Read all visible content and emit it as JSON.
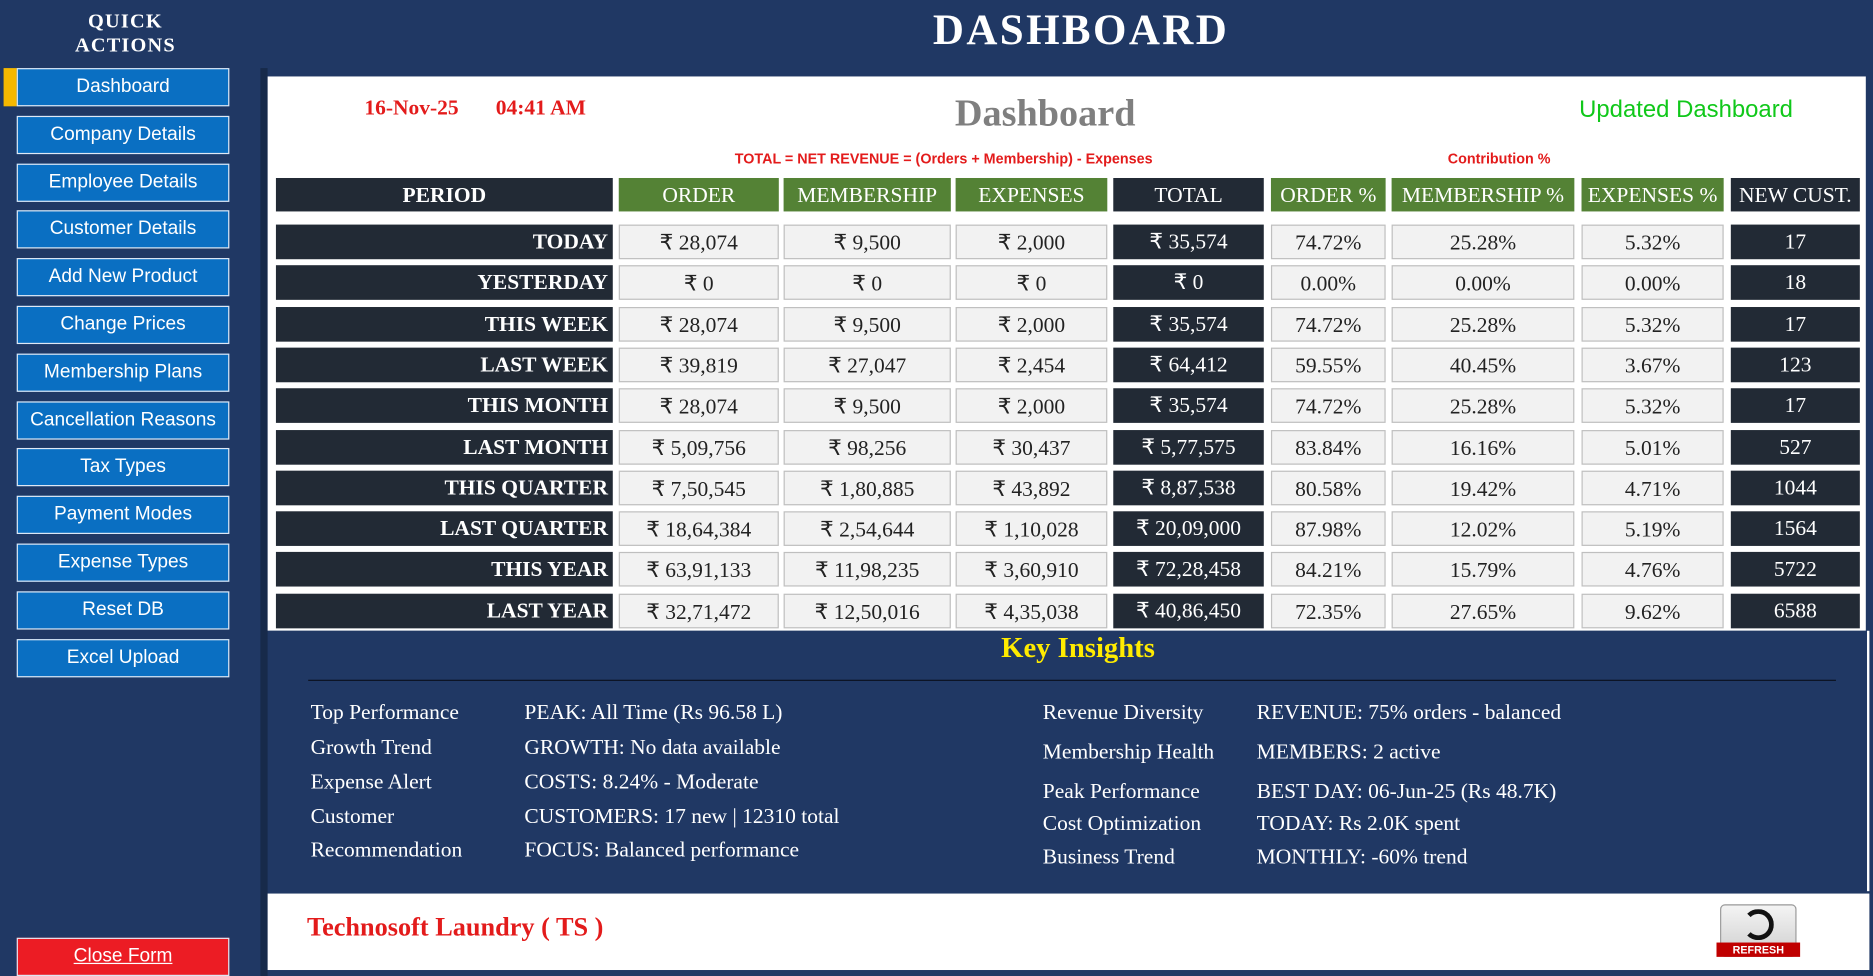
{
  "sidebar": {
    "title": "QUICK ACTIONS",
    "buttons": [
      "Dashboard",
      "Company Details",
      "Employee Details",
      "Customer Details",
      "Add New Product",
      "Change Prices",
      "Membership Plans",
      "Cancellation Reasons",
      "Tax Types",
      "Payment Modes",
      "Expense Types",
      "Reset DB",
      "Excel Upload"
    ],
    "close": "Close Form"
  },
  "header": {
    "title": "DASHBOARD"
  },
  "panel": {
    "date": "16-Nov-25",
    "time": "04:41 AM",
    "title": "Dashboard",
    "status": "Updated Dashboard",
    "formula": "TOTAL = NET REVENUE = (Orders + Membership) - Expenses",
    "contribution": "Contribution %"
  },
  "table": {
    "columns": [
      "PERIOD",
      "ORDER",
      "MEMBERSHIP",
      "EXPENSES",
      "TOTAL",
      "ORDER %",
      "MEMBERSHIP %",
      "EXPENSES %",
      "NEW CUST."
    ],
    "rows": [
      [
        "TODAY",
        "₹ 28,074",
        "₹ 9,500",
        "₹ 2,000",
        "₹ 35,574",
        "74.72%",
        "25.28%",
        "5.32%",
        "17"
      ],
      [
        "YESTERDAY",
        "₹ 0",
        "₹ 0",
        "₹ 0",
        "₹ 0",
        "0.00%",
        "0.00%",
        "0.00%",
        "18"
      ],
      [
        "THIS WEEK",
        "₹ 28,074",
        "₹ 9,500",
        "₹ 2,000",
        "₹ 35,574",
        "74.72%",
        "25.28%",
        "5.32%",
        "17"
      ],
      [
        "LAST WEEK",
        "₹ 39,819",
        "₹ 27,047",
        "₹ 2,454",
        "₹ 64,412",
        "59.55%",
        "40.45%",
        "3.67%",
        "123"
      ],
      [
        "THIS MONTH",
        "₹ 28,074",
        "₹ 9,500",
        "₹ 2,000",
        "₹ 35,574",
        "74.72%",
        "25.28%",
        "5.32%",
        "17"
      ],
      [
        "LAST MONTH",
        "₹ 5,09,756",
        "₹ 98,256",
        "₹ 30,437",
        "₹ 5,77,575",
        "83.84%",
        "16.16%",
        "5.01%",
        "527"
      ],
      [
        "THIS QUARTER",
        "₹ 7,50,545",
        "₹ 1,80,885",
        "₹ 43,892",
        "₹ 8,87,538",
        "80.58%",
        "19.42%",
        "4.71%",
        "1044"
      ],
      [
        "LAST QUARTER",
        "₹ 18,64,384",
        "₹ 2,54,644",
        "₹ 1,10,028",
        "₹ 20,09,000",
        "87.98%",
        "12.02%",
        "5.19%",
        "1564"
      ],
      [
        "THIS YEAR",
        "₹ 63,91,133",
        "₹ 11,98,235",
        "₹ 3,60,910",
        "₹ 72,28,458",
        "84.21%",
        "15.79%",
        "4.76%",
        "5722"
      ],
      [
        "LAST YEAR",
        "₹ 32,71,472",
        "₹ 12,50,016",
        "₹ 4,35,038",
        "₹ 40,86,450",
        "72.35%",
        "27.65%",
        "9.62%",
        "6588"
      ]
    ]
  },
  "insights": {
    "title": "Key Insights",
    "left": [
      {
        "label": "Top Performance",
        "value": "PEAK: All Time (Rs 96.58 L)"
      },
      {
        "label": "Growth Trend",
        "value": "GROWTH: No data available"
      },
      {
        "label": "Expense Alert",
        "value": "COSTS: 8.24% - Moderate"
      },
      {
        "label": "Customer",
        "value": "CUSTOMERS: 17 new | 12310 total"
      },
      {
        "label": "Recommendation",
        "value": "FOCUS: Balanced performance"
      }
    ],
    "right": [
      {
        "label": "Revenue Diversity",
        "value": "REVENUE: 75% orders - balanced"
      },
      {
        "label": "Membership Health",
        "value": "MEMBERS: 2 active"
      },
      {
        "label": "Peak Performance",
        "value": "BEST DAY: 06-Jun-25 (Rs 48.7K)"
      },
      {
        "label": "Cost Optimization",
        "value": "TODAY: Rs 2.0K spent"
      },
      {
        "label": "Business Trend",
        "value": "MONTHLY: -60% trend"
      }
    ]
  },
  "footer": {
    "brand": "Technosoft Laundry ( TS )",
    "refresh": "REFRESH"
  }
}
